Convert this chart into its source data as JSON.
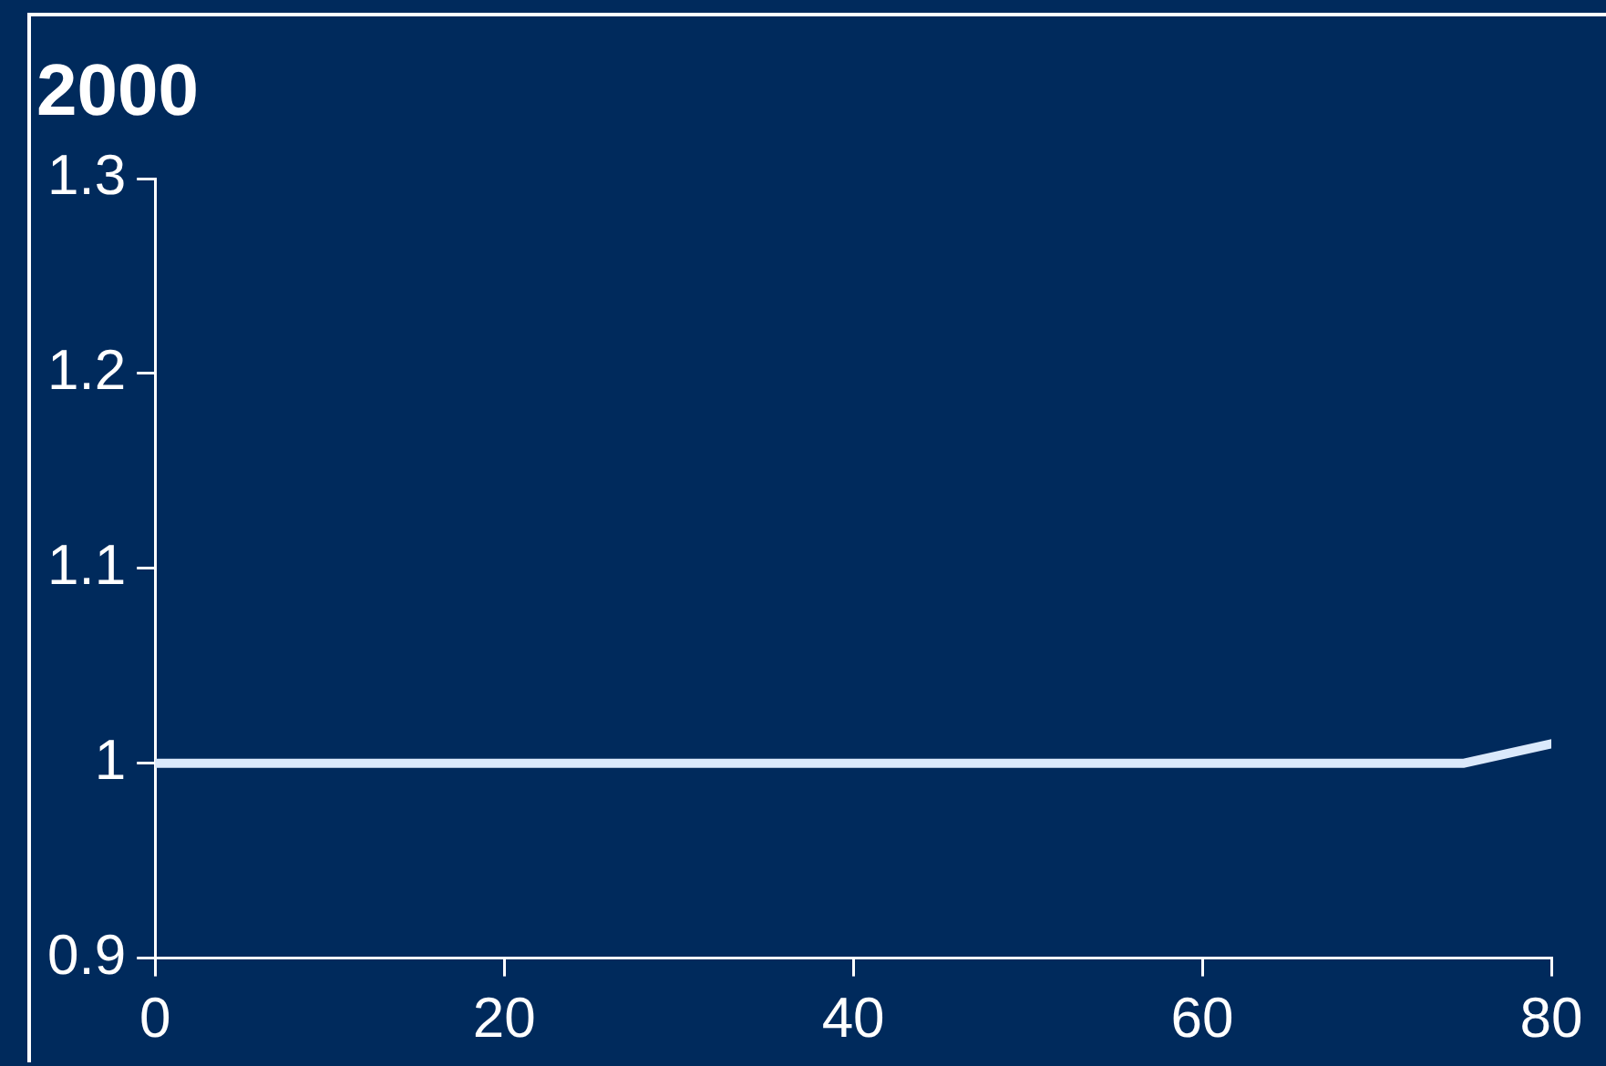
{
  "chart_data": {
    "type": "line",
    "title": "2000",
    "x": [
      0,
      75,
      80
    ],
    "series": [
      {
        "color": "#dbe9fb",
        "values": [
          1,
          1,
          1.01
        ]
      }
    ],
    "xlim": [
      0,
      80
    ],
    "xticks": [
      0,
      20,
      40,
      60,
      80
    ],
    "ylim": [
      0.9,
      1.3
    ],
    "yticks": [
      0.9,
      1,
      1.1,
      1.2,
      1.3
    ],
    "grid": false,
    "legend": false,
    "marker": "none",
    "line_style": "solid"
  }
}
